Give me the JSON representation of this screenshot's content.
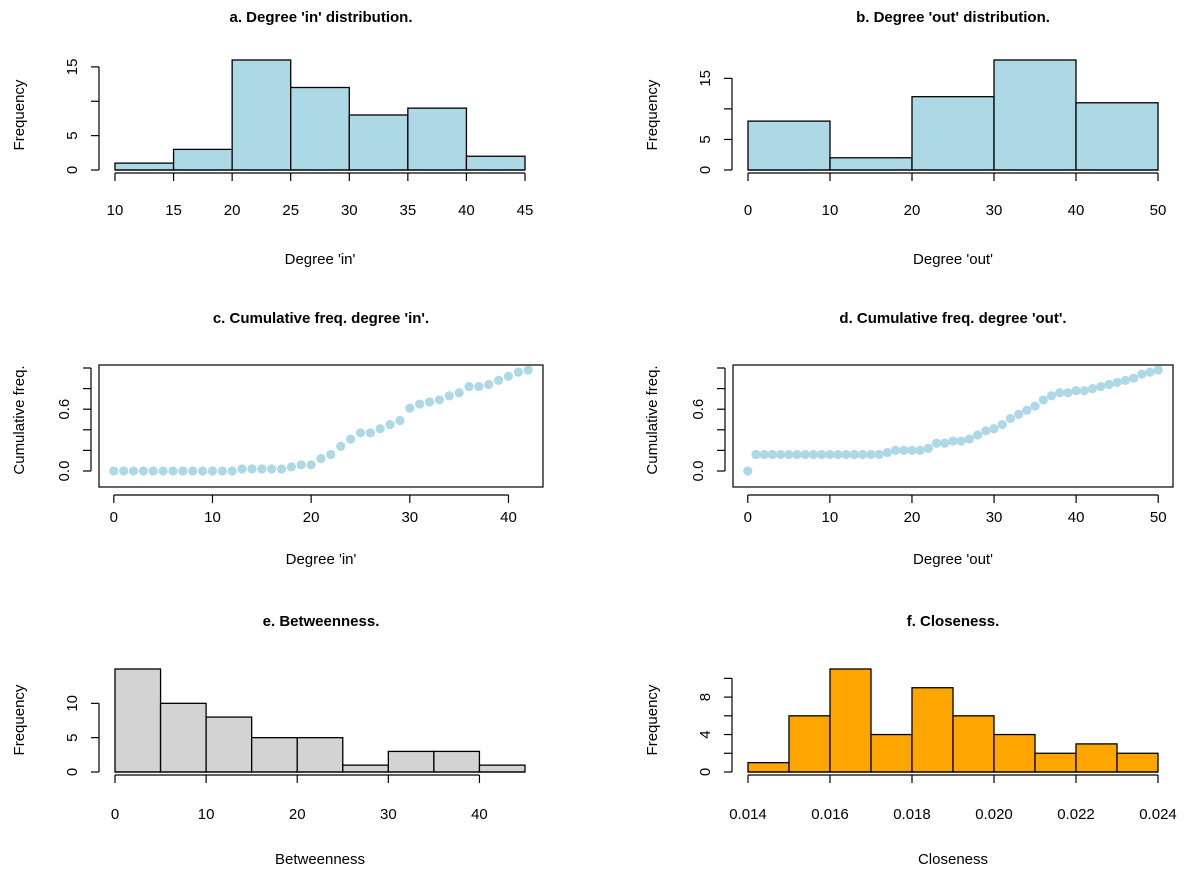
{
  "chart_data": [
    {
      "id": "a",
      "type": "bar",
      "title": "a. Degree 'in' distribution.",
      "xlabel": "Degree 'in'",
      "ylabel": "Frequency",
      "bin_edges": [
        10,
        15,
        20,
        25,
        30,
        35,
        40,
        45
      ],
      "values": [
        1,
        3,
        16,
        12,
        8,
        9,
        2
      ],
      "xlim": [
        10,
        45
      ],
      "ylim": [
        0,
        16
      ],
      "xticks": [
        "10",
        "15",
        "20",
        "25",
        "30",
        "35",
        "40",
        "45"
      ],
      "yticks": [
        "0",
        "5",
        "15"
      ],
      "ytick_values": [
        0,
        5,
        10,
        15
      ],
      "color": "#add8e6",
      "grid": false
    },
    {
      "id": "b",
      "type": "bar",
      "title": "b. Degree 'out' distribution.",
      "xlabel": "Degree 'out'",
      "ylabel": "Frequency",
      "bin_edges": [
        0,
        10,
        20,
        30,
        40,
        50
      ],
      "values": [
        8,
        2,
        12,
        18,
        11
      ],
      "xlim": [
        0,
        50
      ],
      "ylim": [
        0,
        18
      ],
      "xticks": [
        "0",
        "10",
        "20",
        "30",
        "40",
        "50"
      ],
      "yticks": [
        "0",
        "5",
        "15"
      ],
      "ytick_values": [
        0,
        5,
        10,
        15
      ],
      "color": "#add8e6",
      "grid": false
    },
    {
      "id": "c",
      "type": "scatter",
      "title": "c. Cumulative freq. degree 'in'.",
      "xlabel": "Degree 'in'",
      "ylabel": "Cumulative freq.",
      "x": [
        0,
        1,
        2,
        3,
        4,
        5,
        6,
        7,
        8,
        9,
        10,
        11,
        12,
        13,
        14,
        15,
        16,
        17,
        18,
        19,
        20,
        21,
        22,
        23,
        24,
        25,
        26,
        27,
        28,
        29,
        30,
        31,
        32,
        33,
        34,
        35,
        36,
        37,
        38,
        39,
        40,
        41,
        42
      ],
      "y": [
        0,
        0,
        0,
        0,
        0,
        0,
        0,
        0,
        0,
        0,
        0,
        0,
        0,
        0.02,
        0.02,
        0.02,
        0.02,
        0.02,
        0.04,
        0.06,
        0.06,
        0.12,
        0.16,
        0.24,
        0.31,
        0.37,
        0.37,
        0.41,
        0.45,
        0.49,
        0.61,
        0.65,
        0.67,
        0.69,
        0.73,
        0.76,
        0.82,
        0.82,
        0.84,
        0.88,
        0.92,
        0.96,
        0.98
      ],
      "xlim": [
        -1.5,
        43.5
      ],
      "ylim": [
        0,
        1
      ],
      "xticks": [
        "0",
        "10",
        "20",
        "30",
        "40"
      ],
      "xtick_values": [
        0,
        10,
        20,
        30,
        40
      ],
      "yticks": [
        "0.0",
        "0.6"
      ],
      "ytick_values": [
        0,
        0.2,
        0.4,
        0.6,
        0.8,
        1.0
      ],
      "color": "#add8e6",
      "grid": false
    },
    {
      "id": "d",
      "type": "scatter",
      "title": "d. Cumulative freq. degree 'out'.",
      "xlabel": "Degree 'out'",
      "ylabel": "Cumulative freq.",
      "x": [
        0,
        1,
        2,
        3,
        4,
        5,
        6,
        7,
        8,
        9,
        10,
        11,
        12,
        13,
        14,
        15,
        16,
        17,
        18,
        19,
        20,
        21,
        22,
        23,
        24,
        25,
        26,
        27,
        28,
        29,
        30,
        31,
        32,
        33,
        34,
        35,
        36,
        37,
        38,
        39,
        40,
        41,
        42,
        43,
        44,
        45,
        46,
        47,
        48,
        49,
        50
      ],
      "y": [
        0,
        0.16,
        0.16,
        0.16,
        0.16,
        0.16,
        0.16,
        0.16,
        0.16,
        0.16,
        0.16,
        0.16,
        0.16,
        0.16,
        0.16,
        0.16,
        0.16,
        0.18,
        0.2,
        0.2,
        0.2,
        0.2,
        0.22,
        0.27,
        0.27,
        0.29,
        0.29,
        0.31,
        0.35,
        0.39,
        0.41,
        0.45,
        0.51,
        0.55,
        0.59,
        0.63,
        0.69,
        0.73,
        0.76,
        0.76,
        0.78,
        0.78,
        0.8,
        0.82,
        0.84,
        0.86,
        0.88,
        0.9,
        0.94,
        0.96,
        0.98
      ],
      "xlim": [
        -1.8,
        51.8
      ],
      "ylim": [
        0,
        1
      ],
      "xticks": [
        "0",
        "10",
        "20",
        "30",
        "40",
        "50"
      ],
      "xtick_values": [
        0,
        10,
        20,
        30,
        40,
        50
      ],
      "yticks": [
        "0.0",
        "0.6"
      ],
      "ytick_values": [
        0,
        0.2,
        0.4,
        0.6,
        0.8,
        1.0
      ],
      "color": "#add8e6",
      "grid": false
    },
    {
      "id": "e",
      "type": "bar",
      "title": "e. Betweenness.",
      "xlabel": "Betweenness",
      "ylabel": "Frequency",
      "bin_edges": [
        0,
        5,
        10,
        15,
        20,
        25,
        30,
        35,
        40,
        45
      ],
      "values": [
        15,
        10,
        8,
        5,
        5,
        1,
        3,
        3,
        1
      ],
      "xlim": [
        0,
        45
      ],
      "ylim": [
        0,
        15
      ],
      "xticks": [
        "0",
        "10",
        "20",
        "30",
        "40"
      ],
      "xtick_values": [
        0,
        10,
        20,
        30,
        40
      ],
      "yticks": [
        "0",
        "5",
        "10"
      ],
      "ytick_values": [
        0,
        5,
        10
      ],
      "color": "#d3d3d3",
      "grid": false
    },
    {
      "id": "f",
      "type": "bar",
      "title": "f. Closeness.",
      "xlabel": "Closeness",
      "ylabel": "Frequency",
      "bin_edges": [
        0.014,
        0.015,
        0.016,
        0.017,
        0.018,
        0.019,
        0.02,
        0.021,
        0.022,
        0.023,
        0.024
      ],
      "values": [
        1,
        6,
        11,
        4,
        9,
        6,
        4,
        2,
        3,
        2
      ],
      "xlim": [
        0.014,
        0.024
      ],
      "ylim": [
        0,
        11
      ],
      "xticks": [
        "0.014",
        "0.016",
        "0.018",
        "0.020",
        "0.022",
        "0.024"
      ],
      "xtick_values": [
        0.014,
        0.016,
        0.018,
        0.02,
        0.022,
        0.024
      ],
      "yticks": [
        "0",
        "4",
        "8"
      ],
      "ytick_values": [
        0,
        2,
        4,
        6,
        8,
        10
      ],
      "color": "#ffa500",
      "grid": false
    }
  ]
}
